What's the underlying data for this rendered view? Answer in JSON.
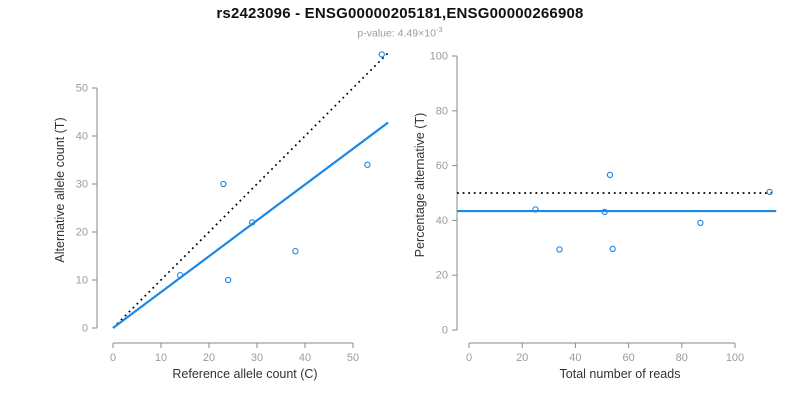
{
  "header": {
    "title": "rs2423096 - ENSG00000205181,ENSG00000266908",
    "subtitle_prefix": "p-value: 4.49×10",
    "subtitle_exponent": "-3"
  },
  "colors": {
    "point_blue": "#1E88E5",
    "line_blue": "#1E88E5",
    "dotted_black": "#000000",
    "axis_line": "#8a8a8a",
    "tick_label": "#9b9b9b",
    "axis_title": "#333333",
    "title_text": "#111111",
    "subtitle_text": "#999999",
    "background": "#ffffff"
  },
  "chart_data": [
    {
      "id": "allele-counts",
      "type": "scatter",
      "title": "",
      "xlabel": "Reference allele count (C)",
      "ylabel": "Alternative allele count (T)",
      "xlim": [
        0,
        57.5
      ],
      "ylim": [
        0,
        57.5
      ],
      "xticks": [
        0,
        10,
        20,
        30,
        40,
        50
      ],
      "yticks": [
        0,
        10,
        20,
        30,
        40,
        50
      ],
      "grid": false,
      "legend": "none",
      "points": [
        [
          14,
          11
        ],
        [
          23,
          30
        ],
        [
          24,
          10
        ],
        [
          29,
          22
        ],
        [
          38,
          16
        ],
        [
          53,
          34
        ],
        [
          56,
          57
        ]
      ],
      "lines": [
        {
          "name": "identity-line",
          "style": "dotted",
          "color": "#000000",
          "x": [
            0,
            57.5
          ],
          "y": [
            0,
            57.5
          ]
        },
        {
          "name": "regression-line",
          "style": "solid",
          "color": "#1E88E5",
          "x": [
            0,
            57.3
          ],
          "y": [
            0,
            42.8
          ]
        }
      ]
    },
    {
      "id": "percentage-reads",
      "type": "scatter",
      "title": "",
      "xlabel": "Total number of reads",
      "ylabel": "Percentage alternative (T)",
      "xlim": [
        -4.5,
        117
      ],
      "ylim": [
        0,
        100
      ],
      "xticks": [
        0,
        20,
        40,
        60,
        80,
        100
      ],
      "yticks": [
        0,
        20,
        40,
        60,
        80,
        100
      ],
      "grid": false,
      "legend": "none",
      "points": [
        [
          25,
          44
        ],
        [
          34,
          29.4
        ],
        [
          51,
          43.1
        ],
        [
          53,
          56.6
        ],
        [
          54,
          29.6
        ],
        [
          87,
          39.1
        ],
        [
          113,
          50.4
        ]
      ],
      "lines": [
        {
          "name": "fifty-percent-line",
          "style": "dotted",
          "color": "#000000",
          "x": [
            -4.5,
            115.5
          ],
          "y": [
            50,
            50
          ]
        },
        {
          "name": "mean-percentage-line",
          "style": "solid",
          "color": "#1E88E5",
          "x": [
            -4.5,
            115.5
          ],
          "y": [
            43.4,
            43.4
          ]
        }
      ]
    }
  ]
}
